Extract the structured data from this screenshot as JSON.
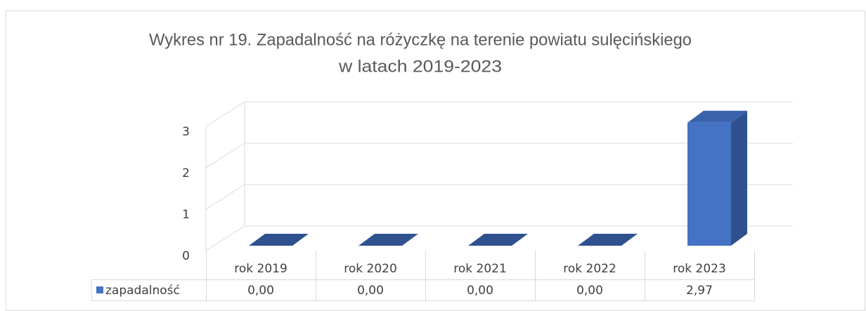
{
  "chart_data": {
    "type": "bar3d",
    "title": [
      "Wykres nr 19. Zapadalność na różyczkę na terenie powiatu sulęcińskiego",
      "w latach 2019-2023"
    ],
    "categories": [
      "rok 2019",
      "rok 2020",
      "rok 2021",
      "rok 2022",
      "rok 2023"
    ],
    "series": [
      {
        "name": "zapadalność",
        "color": "#4472c4",
        "values": [
          0,
          0,
          0,
          0,
          2.97
        ],
        "value_labels": [
          "0,00",
          "0,00",
          "0,00",
          "0,00",
          "2,97"
        ]
      }
    ],
    "ylim": [
      0,
      3
    ],
    "yticks": [
      0,
      1,
      2,
      3
    ],
    "grid": true,
    "data_table": true
  }
}
